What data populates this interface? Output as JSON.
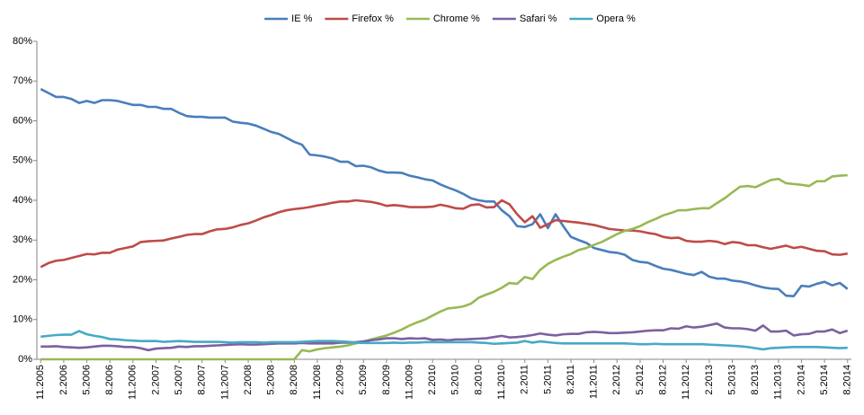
{
  "chart_data": {
    "type": "line",
    "categories": [
      "11.2005",
      null,
      null,
      "2.2006",
      null,
      null,
      "5.2006",
      null,
      null,
      "8.2006",
      null,
      null,
      "11.2006",
      null,
      null,
      "2.2007",
      null,
      null,
      "5.2007",
      null,
      null,
      "8.2007",
      null,
      null,
      "11.2007",
      null,
      null,
      "2.2008",
      null,
      null,
      "5.2008",
      null,
      null,
      "8.2008",
      null,
      null,
      "11.2008",
      null,
      null,
      "2.2009",
      null,
      null,
      "5.2009",
      null,
      null,
      "8.2009",
      null,
      null,
      "11.2009",
      null,
      null,
      "2.2010",
      null,
      null,
      "5.2010",
      null,
      null,
      "8.2010",
      null,
      null,
      "11.2010",
      null,
      null,
      "2.2011",
      null,
      null,
      "5.2011",
      null,
      null,
      "8.2011",
      null,
      null,
      "11.2011",
      null,
      null,
      "2.2012",
      null,
      null,
      "5.2012",
      null,
      null,
      "8.2012",
      null,
      null,
      "11.2012",
      null,
      null,
      "2.2013",
      null,
      null,
      "5.2013",
      null,
      null,
      "8.2013",
      null,
      null,
      "11.2013",
      null,
      null,
      "2.2014",
      null,
      null,
      "5.2014",
      null,
      null,
      "8.2014"
    ],
    "series": [
      {
        "name": "IE %",
        "color": "#4a7ebb",
        "values": [
          68,
          67,
          66,
          66,
          65.5,
          64.5,
          65,
          64.5,
          65.2,
          65.2,
          65,
          64.5,
          64,
          64,
          63.5,
          63.5,
          63,
          63,
          62,
          61.2,
          61,
          61,
          60.8,
          60.8,
          60.8,
          59.8,
          59.5,
          59.3,
          58.8,
          58,
          57.2,
          56.7,
          55.7,
          54.7,
          54,
          51.5,
          51.3,
          51,
          50.5,
          49.7,
          49.7,
          48.6,
          48.7,
          48.3,
          47.5,
          47,
          47,
          46.9,
          46.2,
          45.8,
          45.3,
          45,
          44,
          43.2,
          42.5,
          41.6,
          40.5,
          40,
          39.7,
          39.7,
          37.5,
          36,
          33.5,
          33.3,
          34,
          36.5,
          33,
          36.5,
          33.5,
          30.8,
          30,
          29.3,
          28,
          27.5,
          27,
          26.8,
          26.3,
          25,
          24.5,
          24.3,
          23.5,
          22.8,
          22.5,
          22,
          21.5,
          21.2,
          22,
          20.8,
          20.3,
          20.3,
          19.8,
          19.6,
          19.2,
          18.6,
          18.1,
          17.8,
          17.7,
          16,
          15.9,
          18.5,
          18.3,
          19,
          19.5,
          18.6,
          19.2,
          17.7
        ]
      },
      {
        "name": "Firefox %",
        "color": "#be4b48",
        "values": [
          23.2,
          24.2,
          24.8,
          25,
          25.5,
          26,
          26.5,
          26.4,
          26.8,
          26.8,
          27.6,
          28,
          28.4,
          29.5,
          29.7,
          29.8,
          29.9,
          30.4,
          30.8,
          31.3,
          31.5,
          31.5,
          32.2,
          32.7,
          32.8,
          33.2,
          33.8,
          34.2,
          34.9,
          35.7,
          36.3,
          37,
          37.5,
          37.8,
          38,
          38.3,
          38.7,
          39,
          39.4,
          39.7,
          39.7,
          40,
          39.8,
          39.6,
          39.2,
          38.6,
          38.8,
          38.6,
          38.3,
          38.3,
          38.3,
          38.4,
          38.9,
          38.5,
          38,
          37.9,
          38.8,
          39,
          38.2,
          38.3,
          40,
          39,
          36.5,
          34.5,
          36,
          33.1,
          34,
          35,
          34.8,
          34.6,
          34.4,
          34.1,
          33.8,
          33.3,
          32.8,
          32.6,
          32.4,
          32.4,
          32.2,
          31.8,
          31.5,
          30.8,
          30.5,
          30.6,
          29.8,
          29.6,
          29.6,
          29.8,
          29.6,
          29,
          29.5,
          29.3,
          28.7,
          28.7,
          28.2,
          27.8,
          28.2,
          28.6,
          28,
          28.3,
          27.8,
          27.3,
          27.2,
          26.4,
          26.3,
          26.6
        ]
      },
      {
        "name": "Chrome %",
        "color": "#98b954",
        "values": [
          0,
          0,
          0,
          0,
          0,
          0,
          0,
          0,
          0,
          0,
          0,
          0,
          0,
          0,
          0,
          0,
          0,
          0,
          0,
          0,
          0,
          0,
          0,
          0,
          0,
          0,
          0,
          0,
          0,
          0,
          0,
          0,
          0,
          0,
          2.3,
          2,
          2.5,
          2.8,
          3,
          3.2,
          3.5,
          4,
          4.4,
          5,
          5.5,
          6,
          6.7,
          7.5,
          8.5,
          9.3,
          10,
          11,
          12,
          12.8,
          13,
          13.3,
          14,
          15.5,
          16.3,
          17,
          18,
          19.2,
          19,
          20.7,
          20.2,
          22.5,
          24,
          25,
          25.8,
          26.5,
          27.5,
          28,
          28.8,
          29.5,
          30.5,
          31.5,
          32.3,
          32.8,
          33.5,
          34.5,
          35.3,
          36.2,
          36.8,
          37.5,
          37.5,
          37.8,
          38,
          38,
          39.3,
          40.5,
          42,
          43.4,
          43.6,
          43.3,
          44.2,
          45.1,
          45.4,
          44.3,
          44.1,
          43.9,
          43.6,
          44.8,
          44.8,
          46,
          46.2,
          46.3
        ]
      },
      {
        "name": "Safari %",
        "color": "#7d60a0",
        "values": [
          3.2,
          3.2,
          3.3,
          3.1,
          3,
          2.9,
          3,
          3.2,
          3.4,
          3.4,
          3.3,
          3.1,
          3.1,
          2.8,
          2.3,
          2.7,
          2.8,
          2.9,
          3.2,
          3.1,
          3.3,
          3.3,
          3.4,
          3.5,
          3.6,
          3.7,
          3.8,
          3.7,
          3.7,
          3.8,
          3.9,
          4,
          4,
          4,
          4.1,
          4,
          4,
          4,
          4,
          4.2,
          4.2,
          4.3,
          4.5,
          4.8,
          5,
          5.3,
          5.3,
          5.1,
          5.3,
          5.2,
          5.3,
          4.9,
          5,
          4.8,
          5,
          5,
          5.1,
          5.2,
          5.3,
          5.6,
          5.9,
          5.5,
          5.6,
          5.8,
          6.1,
          6.5,
          6.2,
          6,
          6.3,
          6.4,
          6.4,
          6.8,
          6.9,
          6.8,
          6.6,
          6.6,
          6.7,
          6.8,
          7,
          7.2,
          7.3,
          7.3,
          7.8,
          7.7,
          8.3,
          8,
          8.2,
          8.6,
          9,
          8,
          7.8,
          7.8,
          7.6,
          7.2,
          8.5,
          7,
          7,
          7.2,
          6,
          6.3,
          6.4,
          7,
          7,
          7.5,
          6.6,
          7.2
        ]
      },
      {
        "name": "Opera %",
        "color": "#46aac5",
        "values": [
          5.7,
          5.9,
          6.1,
          6.2,
          6.2,
          7.1,
          6.3,
          5.9,
          5.6,
          5.1,
          5,
          4.8,
          4.7,
          4.6,
          4.6,
          4.6,
          4.4,
          4.5,
          4.6,
          4.5,
          4.4,
          4.4,
          4.4,
          4.4,
          4.3,
          4.2,
          4.3,
          4.3,
          4.3,
          4.2,
          4.3,
          4.3,
          4.3,
          4.3,
          4.4,
          4.5,
          4.6,
          4.6,
          4.6,
          4.5,
          4.4,
          4.2,
          4.1,
          4.1,
          4.1,
          4.1,
          4.2,
          4.1,
          4.2,
          4.2,
          4.3,
          4.3,
          4.3,
          4.3,
          4.3,
          4.3,
          4.3,
          4.2,
          4.1,
          3.9,
          4,
          4.1,
          4.2,
          4.6,
          4.2,
          4.5,
          4.3,
          4.1,
          4,
          4,
          4,
          4,
          4,
          4,
          4,
          4,
          4,
          3.9,
          3.8,
          3.8,
          3.9,
          3.8,
          3.8,
          3.8,
          3.8,
          3.8,
          3.8,
          3.7,
          3.6,
          3.5,
          3.4,
          3.3,
          3.1,
          2.8,
          2.5,
          2.8,
          2.9,
          3,
          3.1,
          3.1,
          3.1,
          3.1,
          3,
          2.9,
          2.8,
          2.9
        ]
      }
    ],
    "ylim": [
      0,
      80
    ],
    "yticks": [
      {
        "value": 0,
        "label": "0%"
      },
      {
        "value": 10,
        "label": "10%"
      },
      {
        "value": 20,
        "label": "20%"
      },
      {
        "value": 30,
        "label": "30%"
      },
      {
        "value": 40,
        "label": "40%"
      },
      {
        "value": 50,
        "label": "50%"
      },
      {
        "value": 60,
        "label": "60%"
      },
      {
        "value": 70,
        "label": "70%"
      },
      {
        "value": 80,
        "label": "80%"
      }
    ],
    "grid": false,
    "legend": "top"
  }
}
